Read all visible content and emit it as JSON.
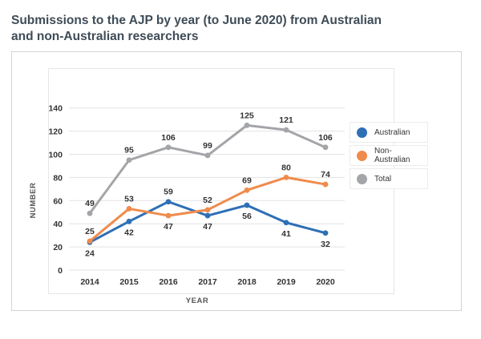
{
  "page": {
    "title_line1": "Submissions to the AJP by year (to June 2020) from Australian",
    "title_line2": "and non-Australian researchers"
  },
  "chart_data": {
    "type": "line",
    "x": [
      "2014",
      "2015",
      "2016",
      "2017",
      "2018",
      "2019",
      "2020"
    ],
    "xlabel": "YEAR",
    "ylabel": "NUMBER",
    "ylim": [
      0,
      140
    ],
    "yticks": [
      "0",
      "20",
      "40",
      "60",
      "80",
      "100",
      "120",
      "140"
    ],
    "grid": true,
    "legend_position": "right",
    "series": [
      {
        "name": "Australian",
        "color": "#2e6fb6",
        "values": [
          24,
          42,
          59,
          47,
          56,
          41,
          32
        ],
        "label_pos": [
          "below",
          "below",
          "above",
          "below",
          "below",
          "below",
          "below"
        ]
      },
      {
        "name": "Non-Australian",
        "color": "#f08b4c",
        "values": [
          25,
          53,
          47,
          52,
          69,
          80,
          74
        ],
        "label_pos": [
          "above",
          "above",
          "below",
          "above",
          "above",
          "above",
          "above"
        ]
      },
      {
        "name": "Total",
        "color": "#a3a5a8",
        "values": [
          49,
          95,
          106,
          99,
          125,
          121,
          106
        ],
        "label_pos": [
          "above",
          "above",
          "above",
          "above",
          "above",
          "above",
          "above"
        ]
      }
    ]
  }
}
